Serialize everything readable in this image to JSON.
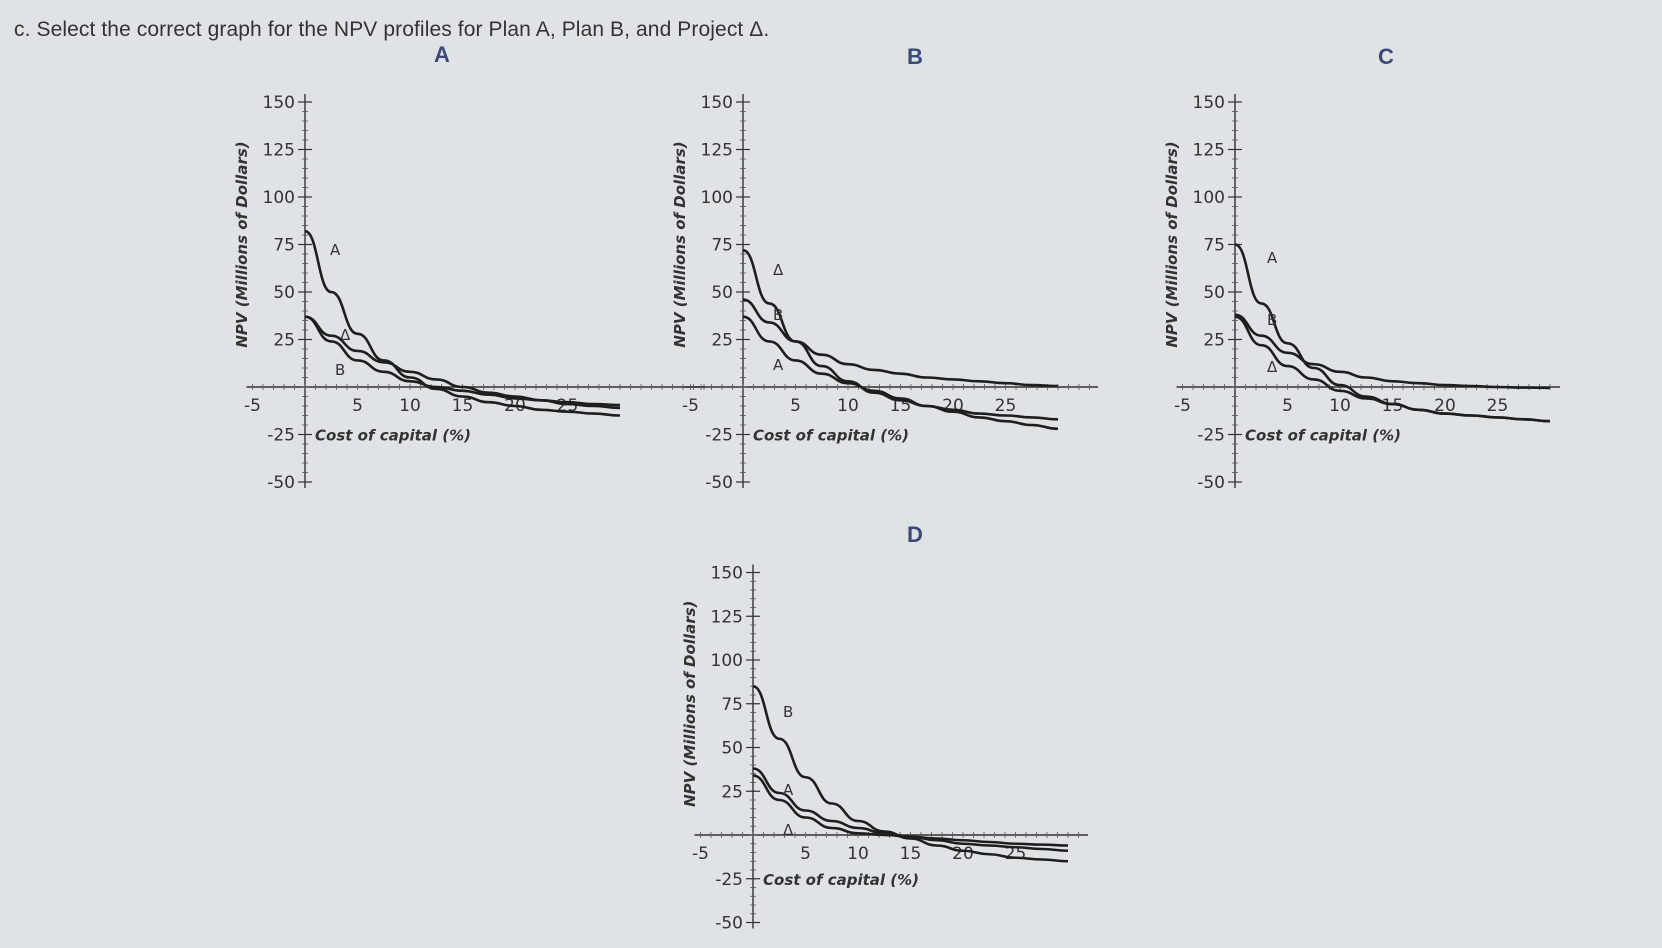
{
  "question": "c. Select the correct graph for the NPV profiles for Plan A, Plan B, and Project Δ.",
  "colors": {
    "background": "#dfe3e6",
    "curve": "#1e1e1e",
    "option_label": "#3a4a7a"
  },
  "options": [
    {
      "label": "A"
    },
    {
      "label": "B"
    },
    {
      "label": "C"
    },
    {
      "label": "D"
    }
  ],
  "axis_text": {
    "ylabel": "NPV (Millions of Dollars)",
    "xlabel": "Cost of capital (%)",
    "yticks": [
      "150",
      "125",
      "100",
      "75",
      "50",
      "25",
      "-25",
      "-50"
    ],
    "xticks": [
      "-5",
      "5",
      "10",
      "15",
      "20",
      "25"
    ]
  },
  "chart_data": [
    {
      "type": "line",
      "option": "A",
      "xlabel": "Cost of capital (%)",
      "ylabel": "NPV (Millions of Dollars)",
      "xlim": [
        -5,
        30
      ],
      "ylim": [
        -50,
        150
      ],
      "x": [
        0,
        2.5,
        5,
        7.5,
        10,
        12.5,
        15,
        17.5,
        20,
        22.5,
        25,
        27.5,
        30
      ],
      "series": [
        {
          "name": "A",
          "values": [
            82,
            50,
            28,
            14,
            5,
            -1,
            -5,
            -8,
            -10,
            -12,
            -13,
            -14,
            -15
          ]
        },
        {
          "name": "Δ",
          "values": [
            37,
            24,
            14,
            8,
            3,
            0,
            -2,
            -4,
            -6,
            -7,
            -8,
            -9,
            -9.5
          ]
        },
        {
          "name": "B",
          "values": [
            37,
            27,
            19,
            13,
            8,
            4,
            0,
            -3,
            -5,
            -7,
            -9,
            -10,
            -11
          ]
        }
      ]
    },
    {
      "type": "line",
      "option": "B",
      "xlabel": "Cost of capital (%)",
      "ylabel": "NPV (Millions of Dollars)",
      "xlim": [
        -5,
        30
      ],
      "ylim": [
        -50,
        150
      ],
      "x": [
        0,
        2.5,
        5,
        7.5,
        10,
        12.5,
        15,
        17.5,
        20,
        22.5,
        25,
        27.5,
        30
      ],
      "series": [
        {
          "name": "Δ",
          "values": [
            72,
            44,
            24,
            11,
            3,
            -3,
            -7,
            -10,
            -12,
            -14,
            -15,
            -16,
            -17
          ]
        },
        {
          "name": "B",
          "values": [
            46,
            34,
            24,
            17,
            12,
            9,
            7,
            5,
            4,
            3,
            2,
            1,
            0.5
          ]
        },
        {
          "name": "A",
          "values": [
            37,
            24,
            14,
            7,
            2,
            -2,
            -6,
            -10,
            -13,
            -16,
            -18,
            -20,
            -22
          ]
        }
      ]
    },
    {
      "type": "line",
      "option": "C",
      "xlabel": "Cost of capital (%)",
      "ylabel": "NPV (Millions of Dollars)",
      "xlim": [
        -5,
        30
      ],
      "ylim": [
        -50,
        150
      ],
      "x": [
        0,
        2.5,
        5,
        7.5,
        10,
        12.5,
        15,
        17.5,
        20,
        22.5,
        25,
        27.5,
        30
      ],
      "series": [
        {
          "name": "A",
          "values": [
            75,
            44,
            23,
            10,
            1,
            -5,
            -9,
            -12,
            -14,
            -15,
            -16,
            -17,
            -18
          ]
        },
        {
          "name": "B",
          "values": [
            38,
            27,
            18,
            12,
            8,
            5,
            3,
            2,
            1,
            0.5,
            0,
            -0.3,
            -0.5
          ]
        },
        {
          "name": "Δ",
          "values": [
            37,
            22,
            11,
            4,
            -2,
            -6,
            -9,
            -12,
            -14,
            -15,
            -16,
            -17,
            -18
          ]
        }
      ]
    },
    {
      "type": "line",
      "option": "D",
      "xlabel": "Cost of capital (%)",
      "ylabel": "NPV (Millions of Dollars)",
      "xlim": [
        -5,
        30
      ],
      "ylim": [
        -50,
        150
      ],
      "x": [
        0,
        2.5,
        5,
        7.5,
        10,
        12.5,
        15,
        17.5,
        20,
        22.5,
        25,
        27.5,
        30
      ],
      "series": [
        {
          "name": "B",
          "values": [
            85,
            55,
            33,
            18,
            8,
            2,
            -2,
            -6,
            -9,
            -11,
            -13,
            -14,
            -15
          ]
        },
        {
          "name": "A",
          "values": [
            38,
            24,
            14,
            8,
            4,
            1,
            -1,
            -3,
            -5,
            -6,
            -7,
            -8,
            -9
          ]
        },
        {
          "name": "Δ",
          "values": [
            34,
            20,
            10,
            4,
            1,
            0,
            -1,
            -2,
            -3,
            -4,
            -5,
            -5.5,
            -6
          ]
        }
      ]
    }
  ]
}
